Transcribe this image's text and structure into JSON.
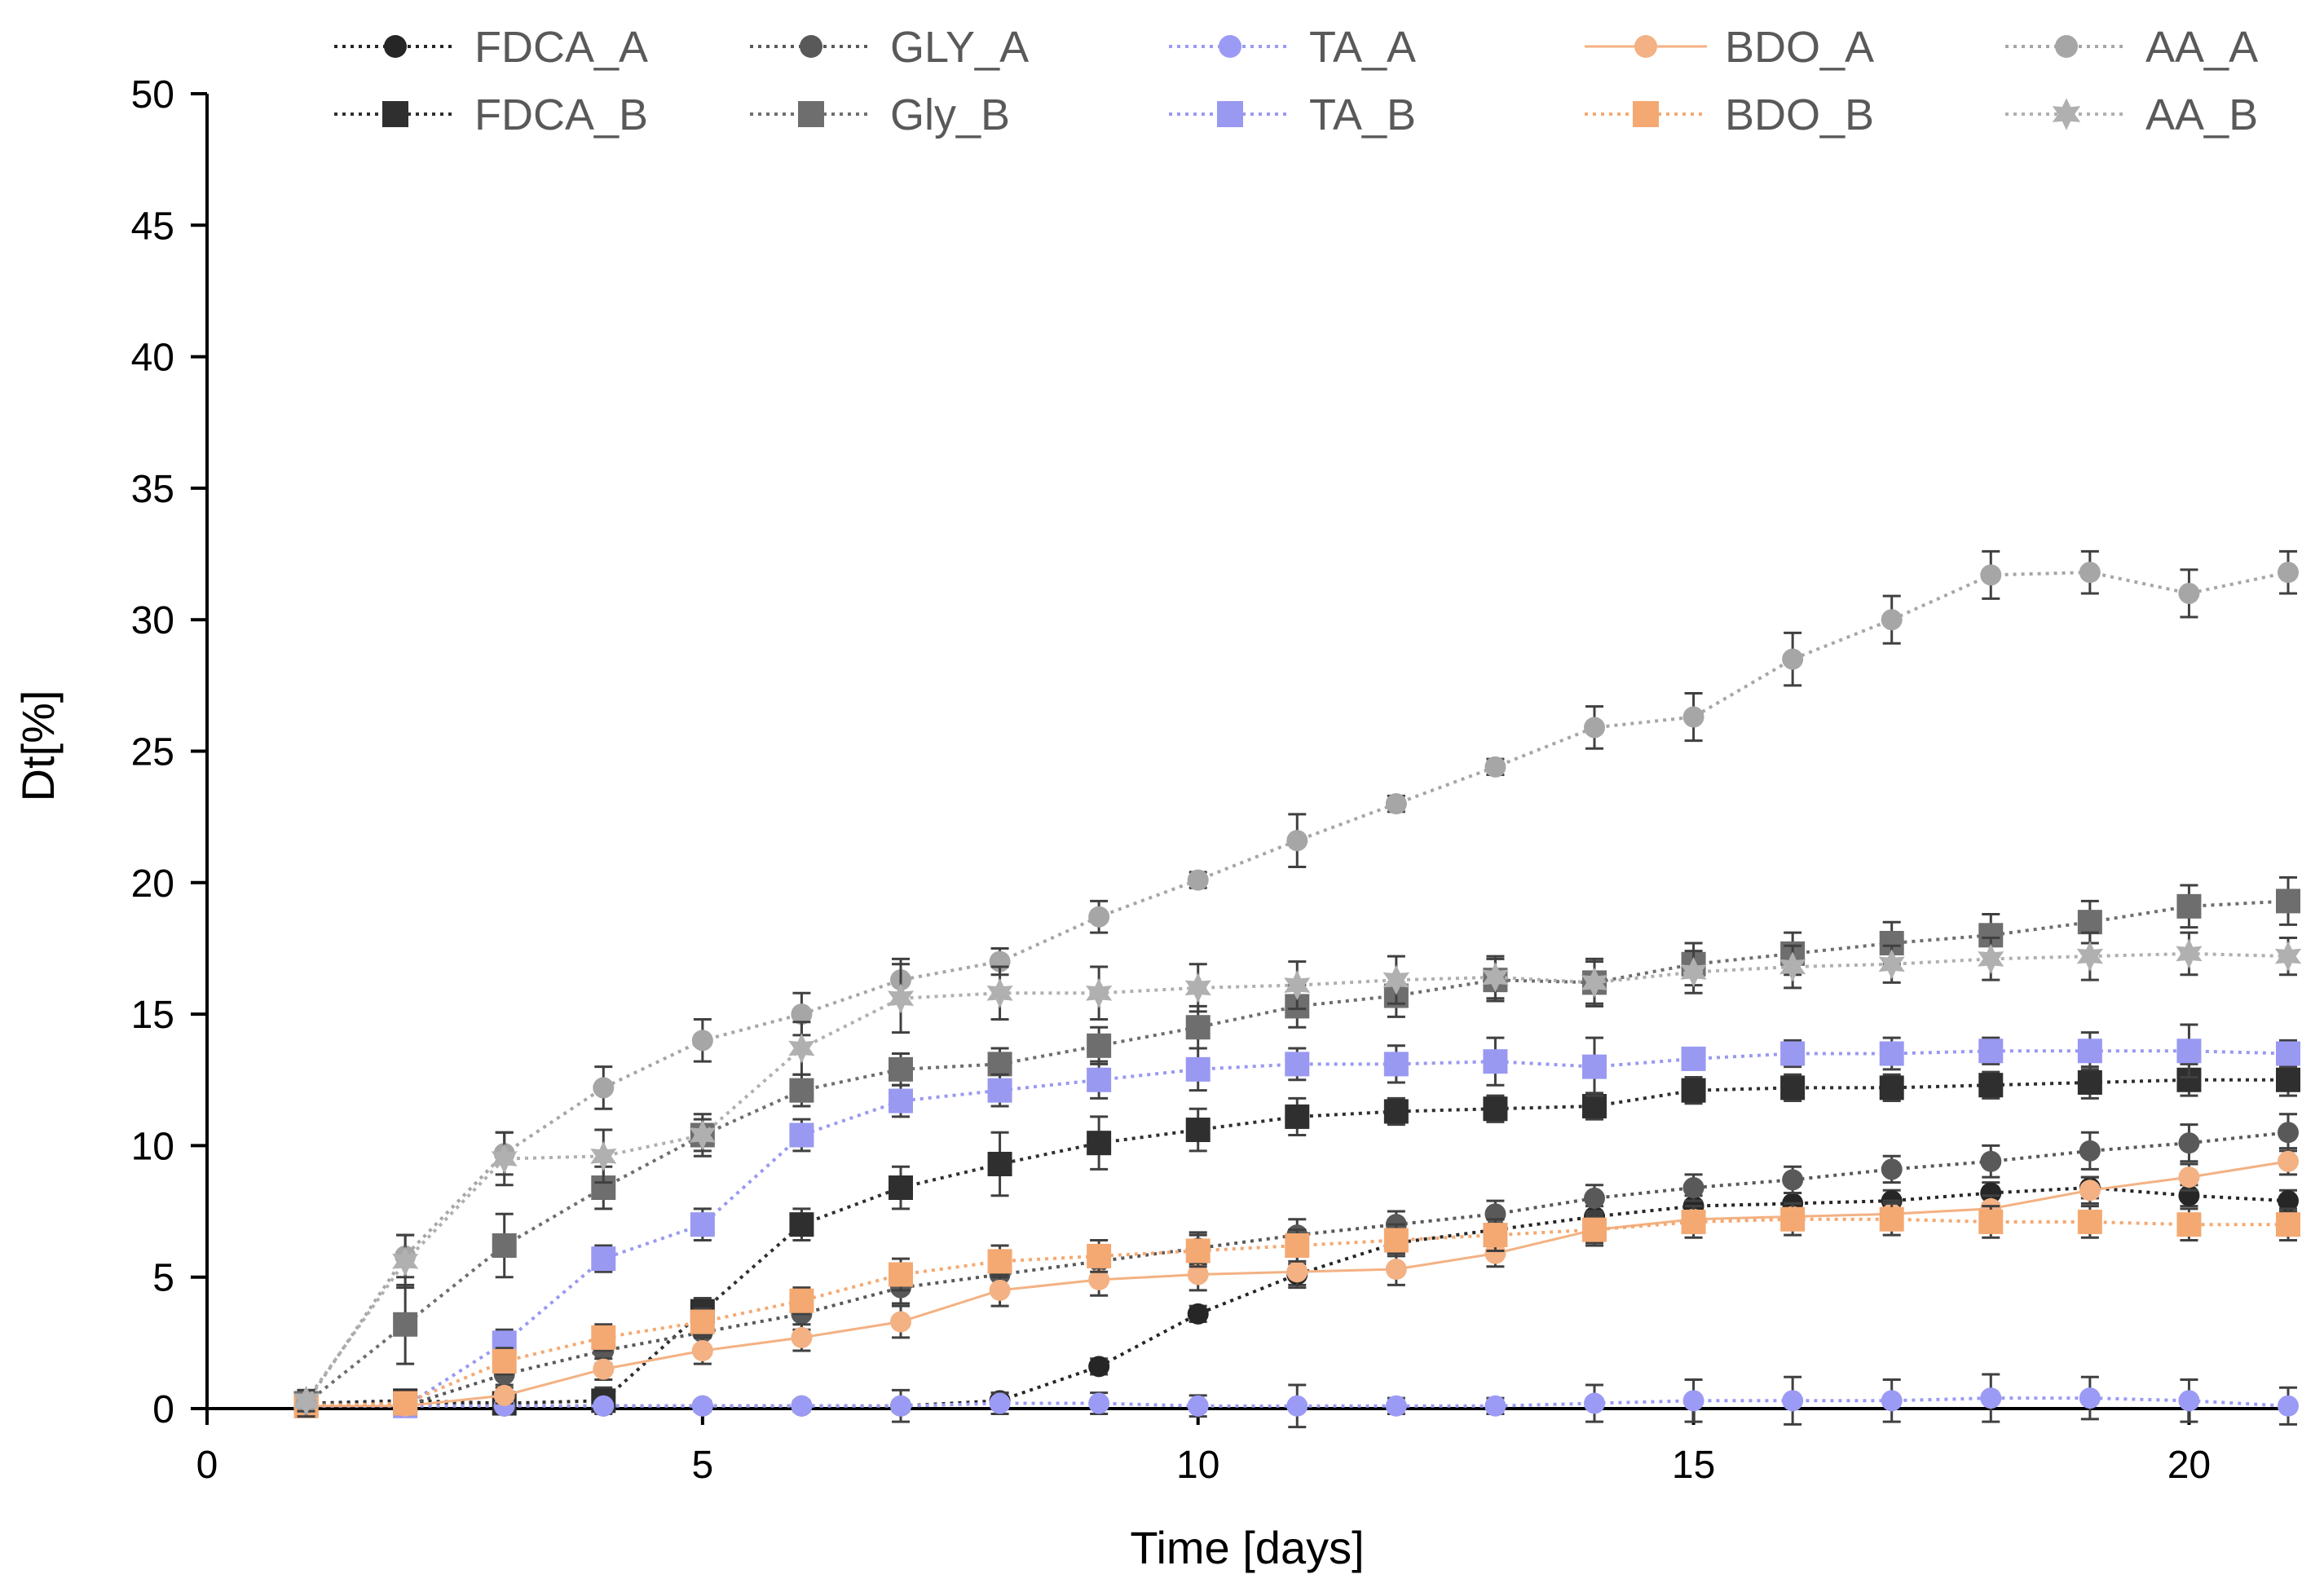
{
  "chart_data": {
    "type": "line",
    "title": "",
    "xlabel": "Time [days]",
    "ylabel": "Dt[%]",
    "xlim": [
      0,
      21
    ],
    "ylim": [
      0,
      50
    ],
    "xticks": [
      "0",
      "5",
      "10",
      "15",
      "20"
    ],
    "yticks": [
      "0",
      "5",
      "10",
      "15",
      "20",
      "25",
      "30",
      "35",
      "40",
      "45",
      "50"
    ],
    "legend_position": "top",
    "x": [
      1,
      2,
      3,
      4,
      5,
      6,
      7,
      8,
      9,
      10,
      11,
      12,
      13,
      14,
      15,
      16,
      17,
      18,
      19,
      20,
      21
    ],
    "series": [
      {
        "name": "FDCA_A",
        "color": "#262626",
        "marker": "circle",
        "dash": "dotted",
        "values": [
          0.2,
          0.2,
          0.1,
          0.1,
          0.1,
          0.1,
          0.1,
          0.3,
          1.6,
          3.6,
          5.1,
          6.3,
          6.8,
          7.3,
          7.7,
          7.8,
          7.9,
          8.2,
          8.4,
          8.1,
          7.9
        ],
        "errors": [
          0.2,
          0.2,
          0.2,
          0.2,
          0.2,
          0.2,
          0.2,
          0.3,
          0.3,
          0.3,
          0.4,
          0.4,
          0.4,
          0.4,
          0.4,
          0.4,
          0.4,
          0.4,
          0.4,
          0.4,
          0.4
        ]
      },
      {
        "name": "FDCA_B",
        "color": "#2f2f2f",
        "marker": "square",
        "dash": "dotted",
        "values": [
          0.2,
          0.3,
          0.2,
          0.3,
          3.7,
          7.0,
          8.4,
          9.3,
          10.1,
          10.6,
          11.1,
          11.3,
          11.4,
          11.5,
          12.1,
          12.2,
          12.2,
          12.3,
          12.4,
          12.5,
          12.5
        ],
        "errors": [
          0.3,
          0.3,
          0.4,
          0.5,
          0.5,
          0.6,
          0.8,
          1.2,
          1.0,
          0.8,
          0.7,
          0.5,
          0.5,
          0.5,
          0.5,
          0.5,
          0.5,
          0.5,
          0.6,
          0.6,
          0.6
        ]
      },
      {
        "name": "GLY_A",
        "color": "#595959",
        "marker": "circle",
        "dash": "dotted",
        "values": [
          0.2,
          0.1,
          1.3,
          2.2,
          2.9,
          3.6,
          4.6,
          5.1,
          5.6,
          6.1,
          6.6,
          7.0,
          7.4,
          8.0,
          8.4,
          8.7,
          9.1,
          9.4,
          9.8,
          10.1,
          10.5
        ],
        "errors": [
          0.2,
          0.2,
          0.4,
          0.5,
          0.6,
          0.6,
          0.6,
          0.6,
          0.6,
          0.6,
          0.6,
          0.5,
          0.5,
          0.5,
          0.5,
          0.5,
          0.5,
          0.6,
          0.7,
          0.7,
          0.7
        ]
      },
      {
        "name": "Gly_B",
        "color": "#6e6e6e",
        "marker": "square",
        "dash": "dotted",
        "values": [
          0.2,
          3.2,
          6.2,
          8.4,
          10.4,
          12.1,
          12.9,
          13.1,
          13.8,
          14.5,
          15.3,
          15.7,
          16.3,
          16.2,
          16.9,
          17.3,
          17.7,
          18.0,
          18.5,
          19.1,
          19.3
        ],
        "errors": [
          0.3,
          1.5,
          1.2,
          0.8,
          0.6,
          0.6,
          0.6,
          0.6,
          0.7,
          0.8,
          0.8,
          0.8,
          0.8,
          0.8,
          0.8,
          0.8,
          0.8,
          0.8,
          0.8,
          0.8,
          0.9
        ]
      },
      {
        "name": "TA_A",
        "color": "#9b9bf5",
        "marker": "circle",
        "dash": "dotted",
        "values": [
          0.1,
          0.1,
          0.1,
          0.1,
          0.1,
          0.1,
          0.1,
          0.2,
          0.2,
          0.1,
          0.1,
          0.1,
          0.1,
          0.2,
          0.3,
          0.3,
          0.3,
          0.4,
          0.4,
          0.3,
          0.1
        ],
        "errors": [
          0.1,
          0.1,
          0.1,
          0.1,
          0.1,
          0.1,
          0.6,
          0.4,
          0.4,
          0.4,
          0.8,
          0.3,
          0.3,
          0.7,
          0.8,
          0.9,
          0.8,
          0.9,
          0.8,
          0.8,
          0.7
        ]
      },
      {
        "name": "TA_B",
        "color": "#9999f2",
        "marker": "square",
        "dash": "dotted",
        "values": [
          0.1,
          0.1,
          2.5,
          5.7,
          7.0,
          10.4,
          11.7,
          12.1,
          12.5,
          12.9,
          13.1,
          13.1,
          13.2,
          13.0,
          13.3,
          13.5,
          13.5,
          13.6,
          13.6,
          13.6,
          13.5
        ],
        "errors": [
          0.2,
          0.3,
          0.5,
          0.5,
          0.6,
          0.6,
          0.6,
          0.6,
          0.7,
          0.8,
          0.6,
          0.7,
          0.9,
          1.1,
          0.4,
          0.5,
          0.6,
          0.5,
          0.7,
          1.0,
          0.5
        ]
      },
      {
        "name": "BDO_A",
        "color": "#f4b183",
        "marker": "circle",
        "dash": "solid",
        "values": [
          0.1,
          0.1,
          0.5,
          1.5,
          2.2,
          2.7,
          3.3,
          4.5,
          4.9,
          5.1,
          5.2,
          5.3,
          5.9,
          6.8,
          7.2,
          7.3,
          7.4,
          7.6,
          8.3,
          8.8,
          9.4
        ],
        "errors": [
          0.1,
          0.1,
          0.3,
          0.4,
          0.5,
          0.5,
          0.6,
          0.6,
          0.6,
          0.6,
          0.6,
          0.6,
          0.5,
          0.5,
          0.5,
          0.5,
          0.5,
          0.5,
          0.5,
          0.5,
          0.5
        ]
      },
      {
        "name": "BDO_B",
        "color": "#f4a972",
        "marker": "square",
        "dash": "dotted",
        "values": [
          0.1,
          0.2,
          1.8,
          2.7,
          3.3,
          4.1,
          5.1,
          5.6,
          5.8,
          6.0,
          6.2,
          6.4,
          6.6,
          6.8,
          7.1,
          7.2,
          7.2,
          7.1,
          7.1,
          7.0,
          7.0
        ],
        "errors": [
          0.1,
          0.3,
          0.5,
          0.5,
          0.5,
          0.5,
          0.6,
          0.6,
          0.6,
          0.6,
          0.6,
          0.6,
          0.6,
          0.6,
          0.6,
          0.6,
          0.6,
          0.6,
          0.6,
          0.6,
          0.6
        ]
      },
      {
        "name": "AA_A",
        "color": "#a6a6a6",
        "marker": "circle",
        "dash": "dotted",
        "values": [
          0.2,
          5.8,
          9.7,
          12.2,
          14.0,
          15.0,
          16.3,
          17.0,
          18.7,
          20.1,
          21.6,
          23.0,
          24.4,
          25.9,
          26.3,
          28.5,
          30.0,
          31.7,
          31.8,
          31.0,
          31.8
        ],
        "errors": [
          0.5,
          0.8,
          0.8,
          0.8,
          0.8,
          0.8,
          0.8,
          0.5,
          0.6,
          0.3,
          1.0,
          0.3,
          0.3,
          0.8,
          0.9,
          1.0,
          0.9,
          0.9,
          0.8,
          0.9,
          0.8
        ]
      },
      {
        "name": "AA_B",
        "color": "#b0b0b0",
        "marker": "star",
        "dash": "dotted",
        "values": [
          0.3,
          5.6,
          9.5,
          9.6,
          10.4,
          13.7,
          15.6,
          15.8,
          15.8,
          16.0,
          16.1,
          16.3,
          16.4,
          16.2,
          16.6,
          16.8,
          16.9,
          17.1,
          17.2,
          17.3,
          17.2
        ],
        "errors": [
          0.4,
          1.0,
          1.0,
          1.0,
          0.8,
          1.0,
          1.3,
          1.0,
          1.0,
          0.9,
          0.9,
          0.9,
          0.8,
          0.9,
          0.8,
          0.8,
          0.7,
          0.8,
          0.9,
          0.8,
          0.7
        ]
      }
    ]
  }
}
